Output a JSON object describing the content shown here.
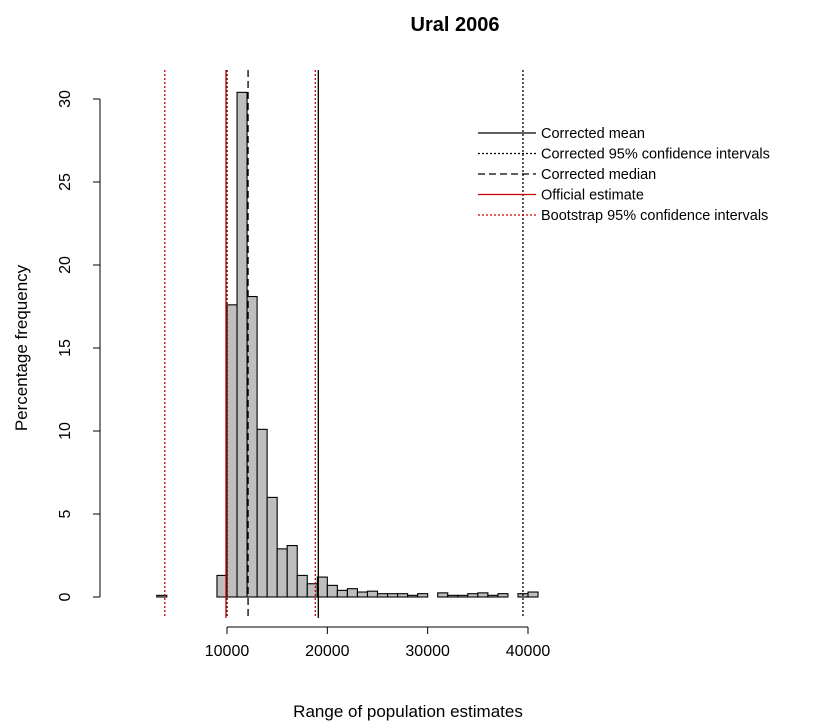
{
  "chart_data": {
    "type": "bar",
    "title": "Ural  2006",
    "xlabel": "Range of population estimates",
    "ylabel": "Percentage frequency",
    "xlim": [
      3000,
      42000
    ],
    "ylim": [
      0,
      31
    ],
    "xticks": [
      {
        "value": 10000,
        "label": "10000"
      },
      {
        "value": 20000,
        "label": "20000"
      },
      {
        "value": 30000,
        "label": "30000"
      },
      {
        "value": 40000,
        "label": "40000"
      }
    ],
    "yticks": [
      {
        "value": 0,
        "label": "0"
      },
      {
        "value": 5,
        "label": "5"
      },
      {
        "value": 10,
        "label": "10"
      },
      {
        "value": 15,
        "label": "15"
      },
      {
        "value": 20,
        "label": "20"
      },
      {
        "value": 25,
        "label": "25"
      },
      {
        "value": 30,
        "label": "30"
      }
    ],
    "bin_width": 1000,
    "bins": [
      {
        "x0": 3000,
        "x1": 4000,
        "value": 0.1
      },
      {
        "x0": 4000,
        "x1": 5000,
        "value": 0
      },
      {
        "x0": 5000,
        "x1": 6000,
        "value": 0
      },
      {
        "x0": 6000,
        "x1": 7000,
        "value": 0
      },
      {
        "x0": 7000,
        "x1": 8000,
        "value": 0
      },
      {
        "x0": 8000,
        "x1": 9000,
        "value": 0
      },
      {
        "x0": 9000,
        "x1": 10000,
        "value": 1.3
      },
      {
        "x0": 10000,
        "x1": 11000,
        "value": 17.6
      },
      {
        "x0": 11000,
        "x1": 12000,
        "value": 30.4
      },
      {
        "x0": 12000,
        "x1": 13000,
        "value": 18.1
      },
      {
        "x0": 13000,
        "x1": 14000,
        "value": 10.1
      },
      {
        "x0": 14000,
        "x1": 15000,
        "value": 6.0
      },
      {
        "x0": 15000,
        "x1": 16000,
        "value": 2.9
      },
      {
        "x0": 16000,
        "x1": 17000,
        "value": 3.1
      },
      {
        "x0": 17000,
        "x1": 18000,
        "value": 1.3
      },
      {
        "x0": 18000,
        "x1": 19000,
        "value": 0.8
      },
      {
        "x0": 19000,
        "x1": 20000,
        "value": 1.2
      },
      {
        "x0": 20000,
        "x1": 21000,
        "value": 0.7
      },
      {
        "x0": 21000,
        "x1": 22000,
        "value": 0.4
      },
      {
        "x0": 22000,
        "x1": 23000,
        "value": 0.5
      },
      {
        "x0": 23000,
        "x1": 24000,
        "value": 0.3
      },
      {
        "x0": 24000,
        "x1": 25000,
        "value": 0.35
      },
      {
        "x0": 25000,
        "x1": 26000,
        "value": 0.2
      },
      {
        "x0": 26000,
        "x1": 27000,
        "value": 0.2
      },
      {
        "x0": 27000,
        "x1": 28000,
        "value": 0.2
      },
      {
        "x0": 28000,
        "x1": 29000,
        "value": 0.1
      },
      {
        "x0": 29000,
        "x1": 30000,
        "value": 0.2
      },
      {
        "x0": 30000,
        "x1": 31000,
        "value": 0
      },
      {
        "x0": 31000,
        "x1": 32000,
        "value": 0.25
      },
      {
        "x0": 32000,
        "x1": 33000,
        "value": 0.1
      },
      {
        "x0": 33000,
        "x1": 34000,
        "value": 0.1
      },
      {
        "x0": 34000,
        "x1": 35000,
        "value": 0.2
      },
      {
        "x0": 35000,
        "x1": 36000,
        "value": 0.25
      },
      {
        "x0": 36000,
        "x1": 37000,
        "value": 0.1
      },
      {
        "x0": 37000,
        "x1": 38000,
        "value": 0.2
      },
      {
        "x0": 38000,
        "x1": 39000,
        "value": 0
      },
      {
        "x0": 39000,
        "x1": 40000,
        "value": 0.2
      },
      {
        "x0": 40000,
        "x1": 41000,
        "value": 0.3
      }
    ],
    "reference_lines": [
      {
        "name": "Corrected mean",
        "x": [
          19100
        ],
        "color": "#000000",
        "dash": "solid"
      },
      {
        "name": "Corrected 95% confidence intervals",
        "x": [
          10000,
          39500
        ],
        "color": "#000000",
        "dash": "dotted"
      },
      {
        "name": "Corrected median",
        "x": [
          12100
        ],
        "color": "#000000",
        "dash": "dashed"
      },
      {
        "name": "Official estimate",
        "x": [
          9900
        ],
        "color": "#cc0000",
        "dash": "solid"
      },
      {
        "name": "Bootstrap 95% confidence intervals",
        "x": [
          3800,
          18800
        ],
        "color": "#cc0000",
        "dash": "dotted"
      }
    ],
    "legend_position": "top-right",
    "bar_fill": "#bebebe",
    "bar_stroke": "#000000",
    "grid": false
  }
}
